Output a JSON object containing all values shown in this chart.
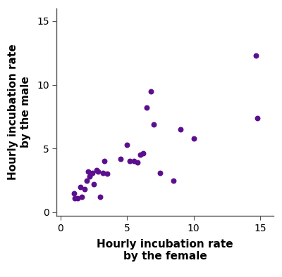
{
  "x": [
    1.0,
    1.1,
    1.3,
    1.5,
    1.6,
    1.8,
    2.0,
    2.1,
    2.2,
    2.3,
    2.4,
    2.5,
    2.7,
    2.8,
    3.0,
    3.2,
    3.3,
    3.5,
    4.5,
    5.0,
    5.2,
    5.5,
    5.8,
    6.0,
    6.2,
    6.5,
    6.8,
    7.0,
    7.5,
    8.5,
    9.0,
    10.0,
    14.7,
    14.8
  ],
  "y": [
    1.5,
    1.1,
    1.1,
    2.0,
    1.2,
    1.8,
    2.5,
    3.2,
    2.8,
    3.0,
    3.1,
    2.2,
    3.3,
    3.2,
    1.2,
    3.1,
    4.0,
    3.0,
    4.2,
    5.3,
    4.0,
    4.0,
    3.9,
    4.5,
    4.6,
    8.2,
    9.5,
    6.9,
    3.1,
    2.5,
    6.5,
    5.8,
    12.3,
    7.4
  ],
  "dot_color": "#5B0F8E",
  "dot_size": 22,
  "xlim": [
    -0.3,
    16
  ],
  "ylim": [
    -0.3,
    16
  ],
  "xticks": [
    0,
    5,
    10,
    15
  ],
  "yticks": [
    0,
    5,
    10,
    15
  ],
  "xlabel_line1": "Hourly incubation rate",
  "xlabel_line2": "by the female",
  "ylabel_line1": "Hourly incubation rate",
  "ylabel_line2": "by the male",
  "xlabel_fontsize": 11,
  "ylabel_fontsize": 11,
  "tick_fontsize": 10,
  "figwidth": 4.0,
  "figheight": 3.94,
  "dpi": 100
}
